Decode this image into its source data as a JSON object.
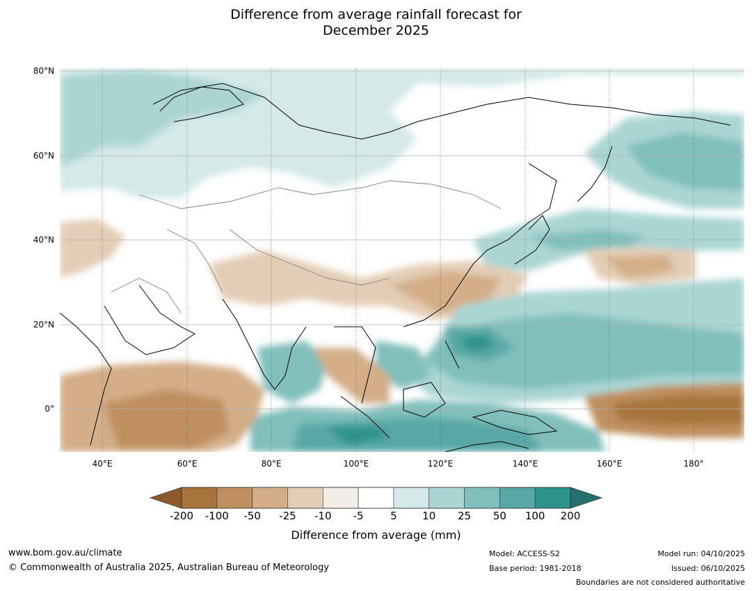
{
  "title_line1": "Difference from average rainfall forecast for",
  "title_line2": "December 2025",
  "map": {
    "lat_labels": [
      "80°N",
      "60°N",
      "40°N",
      "20°N",
      "0°"
    ],
    "lon_labels": [
      "40°E",
      "60°E",
      "80°E",
      "100°E",
      "120°E",
      "140°E",
      "160°E",
      "180°"
    ],
    "extent": {
      "lon": [
        30,
        192
      ],
      "lat": [
        -10,
        80
      ]
    }
  },
  "legend": {
    "title": "Difference from average (mm)",
    "ticks": [
      "-200",
      "-100",
      "-50",
      "-25",
      "-10",
      "-5",
      "5",
      "10",
      "25",
      "50",
      "100",
      "200"
    ],
    "colors": {
      "below_min": "#8c5a2b",
      "bins": [
        "#a8743d",
        "#bf905f",
        "#d3ae88",
        "#e3cdb6",
        "#f2ede6",
        "#ffffff",
        "#d4e9e8",
        "#aad5d3",
        "#80bfbc",
        "#58a8a5",
        "#2e928d"
      ],
      "above_max": "#23706c"
    }
  },
  "footer": {
    "website": "www.bom.gov.au/climate",
    "copyright": "© Commonwealth of Australia 2025, Australian Bureau of Meteorology",
    "model": "Model: ACCESS-S2",
    "base_period": "Base period: 1981-2018",
    "model_run": "Model run: 04/10/2025",
    "issued": "Issued: 06/10/2025",
    "disclaimer": "Boundaries are not considered authoritative"
  }
}
